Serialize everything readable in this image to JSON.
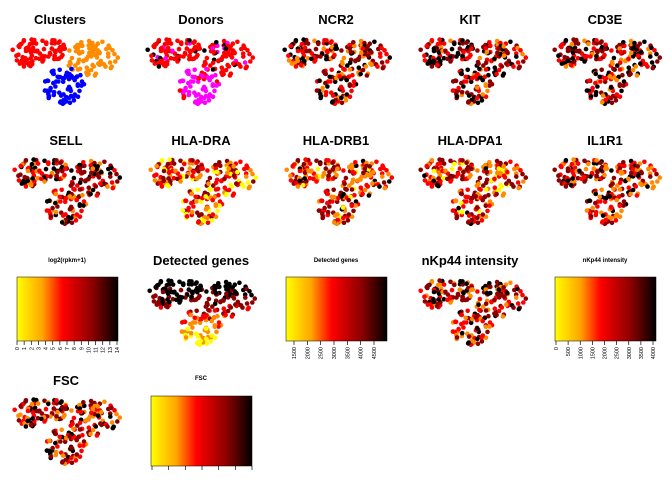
{
  "chart_data": {
    "type": "scatter",
    "colors": {
      "clusters": [
        "#ff0000",
        "#ff8c00",
        "#0000ff"
      ],
      "donors": [
        "#ff0000",
        "#ff00ff",
        "#000000"
      ],
      "heat": [
        "#ffff00",
        "#ff8c00",
        "#ff0000",
        "#8b0000",
        "#000000"
      ]
    },
    "panels": [
      {
        "title": "Clusters",
        "kind": "categorical",
        "palette": "clusters"
      },
      {
        "title": "Donors",
        "kind": "categorical",
        "palette": "donors"
      },
      {
        "title": "NCR2",
        "kind": "heat",
        "seed": 3,
        "bias": 0.55
      },
      {
        "title": "KIT",
        "kind": "heat",
        "seed": 4,
        "bias": 0.6
      },
      {
        "title": "CD3E",
        "kind": "heat",
        "seed": 5,
        "bias": 0.55
      },
      {
        "title": "SELL",
        "kind": "heat",
        "seed": 6,
        "bias": 0.5
      },
      {
        "title": "HLA-DRA",
        "kind": "heat",
        "seed": 7,
        "bias": 0.2
      },
      {
        "title": "HLA-DRB1",
        "kind": "heat",
        "seed": 8,
        "bias": 0.35
      },
      {
        "title": "HLA-DPA1",
        "kind": "heat",
        "seed": 9,
        "bias": 0.3
      },
      {
        "title": "IL1R1",
        "kind": "heat",
        "seed": 10,
        "bias": 0.45
      },
      {
        "title": "Detected genes",
        "kind": "gradient-y",
        "seed": 11
      },
      {
        "title": "nKp44 intensity",
        "kind": "heat",
        "seed": 12,
        "bias": 0.45
      },
      {
        "title": "FSC",
        "kind": "heat",
        "seed": 13,
        "bias": 0.5
      }
    ],
    "legends": [
      {
        "title": "log2(rpkm+1)",
        "ticks": [
          "0",
          "1",
          "2",
          "3",
          "4",
          "5",
          "6",
          "7",
          "8",
          "9",
          "10",
          "11",
          "12",
          "13",
          "14"
        ],
        "rotate": true
      },
      {
        "title": "Detected genes",
        "ticks": [
          "1500",
          "2000",
          "2500",
          "3000",
          "3500",
          "4000",
          "4500"
        ],
        "rotate": true
      },
      {
        "title": "nKp44 intensity",
        "ticks": [
          "0",
          "500",
          "1000",
          "1500",
          "2000",
          "2500",
          "3000",
          "3500",
          "4000"
        ],
        "rotate": true
      },
      {
        "title": "FSC",
        "ticks": [
          "",
          "",
          "",
          "",
          "",
          "",
          ""
        ],
        "rotate": false
      }
    ]
  }
}
